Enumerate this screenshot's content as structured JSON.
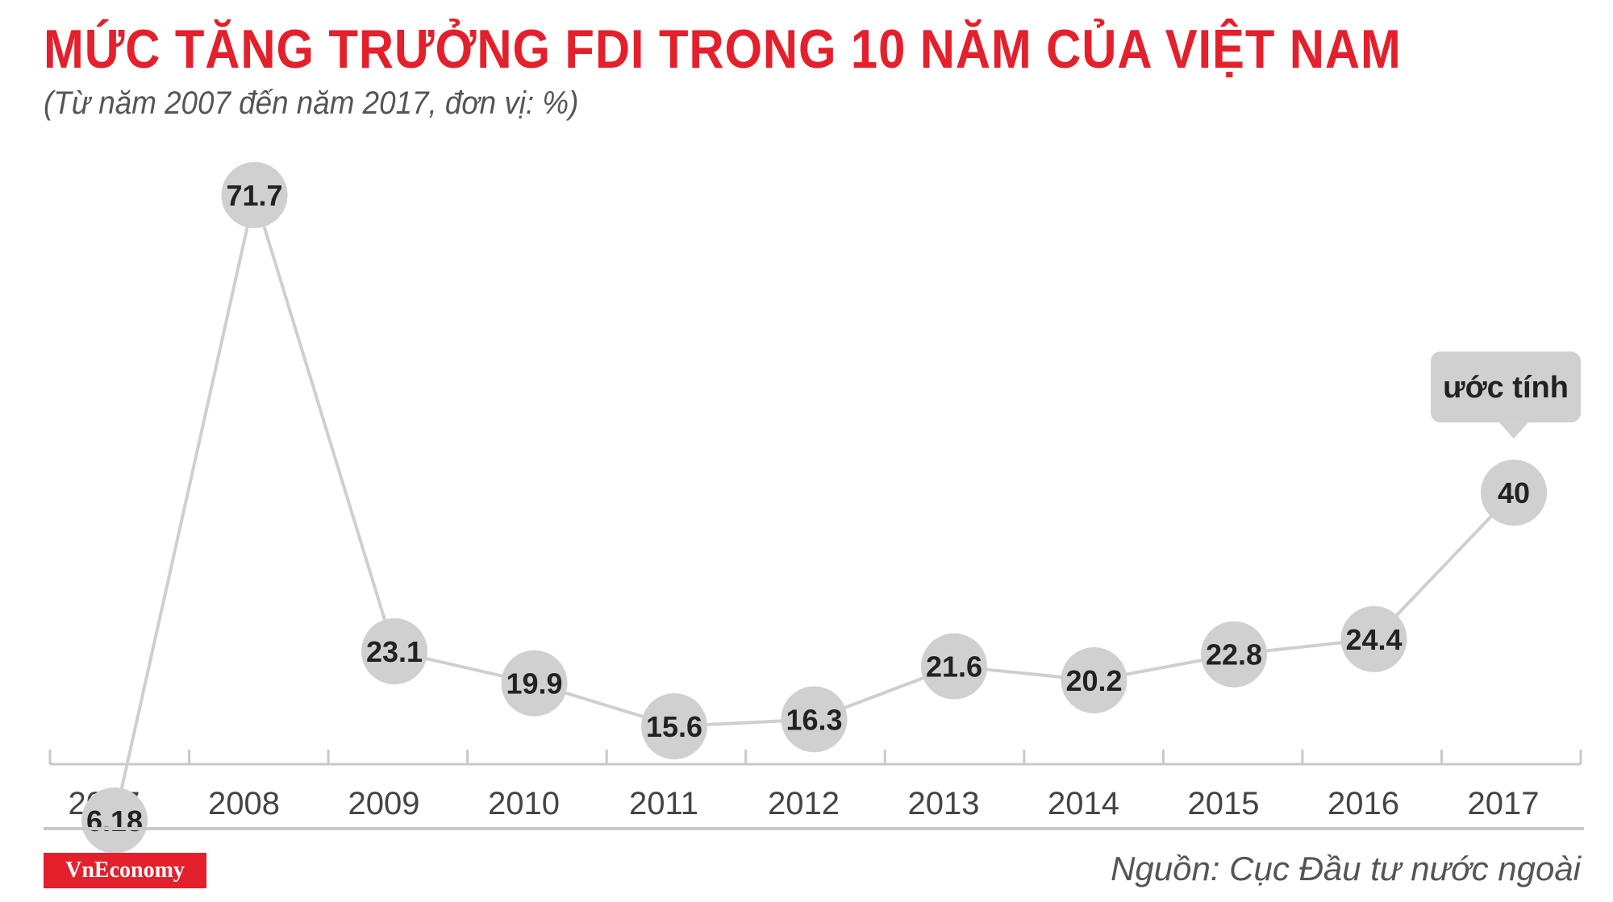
{
  "title": "MỨC TĂNG TRƯỞNG FDI TRONG 10 NĂM CỦA VIỆT NAM",
  "subtitle": "(Từ năm 2007 đến năm 2017, đơn vị: %)",
  "source": "Nguồn: Cục Đầu tư nước ngoài",
  "logo": "VnEconomy",
  "colors": {
    "title": "#e3202b",
    "line": "#cfcfcf",
    "marker": "#d0d0d0",
    "label": "#222222",
    "axis": "#c9c9c9"
  },
  "chart_data": {
    "type": "line",
    "categories": [
      "2007",
      "2008",
      "2009",
      "2010",
      "2011",
      "2012",
      "2013",
      "2014",
      "2015",
      "2016",
      "2017"
    ],
    "values": [
      6.18,
      71.7,
      23.1,
      19.9,
      15.6,
      16.3,
      21.6,
      20.2,
      22.8,
      24.4,
      40
    ],
    "value_labels": [
      "6.18",
      "71.7",
      "23.1",
      "19.9",
      "15.6",
      "16.3",
      "21.6",
      "20.2",
      "22.8",
      "24.4",
      "40"
    ],
    "annotation": {
      "category": "2017",
      "text": "ước tính"
    },
    "grid": false,
    "legend": "none"
  }
}
